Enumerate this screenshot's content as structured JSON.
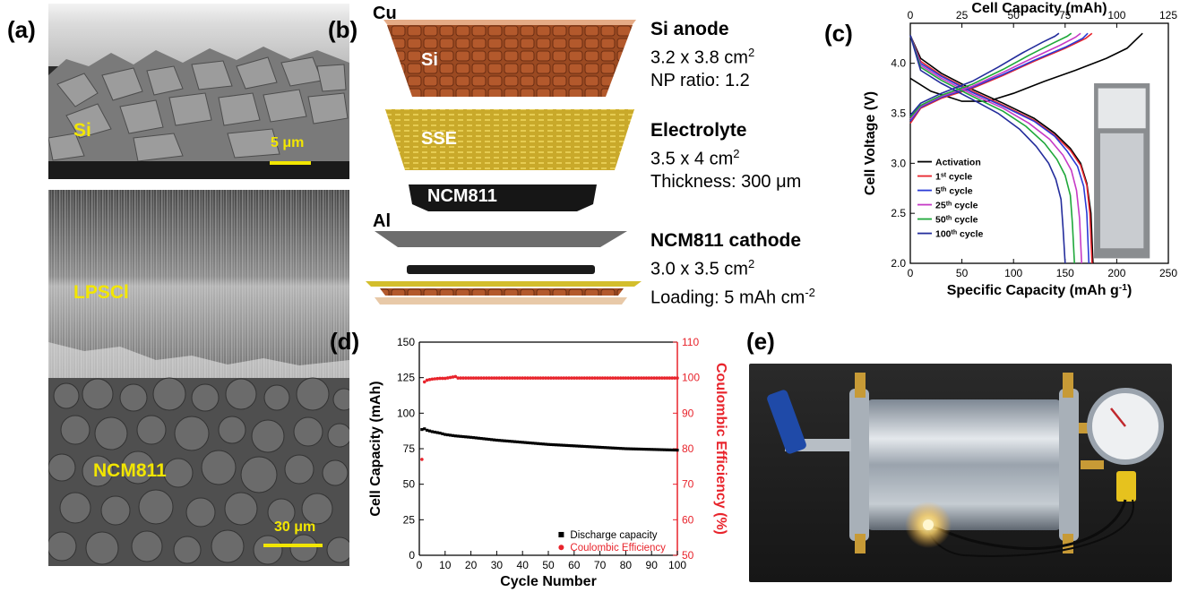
{
  "panels": {
    "a": {
      "label": "(a)",
      "top_image": {
        "label": "Si",
        "scale_bar": "5 μm"
      },
      "bottom_image": {
        "label_top": "LPSCl",
        "label_bottom": "NCM811",
        "scale_bar": "30 μm"
      }
    },
    "b": {
      "label": "(b)",
      "layer_labels": {
        "cu": "Cu",
        "si": "Si",
        "sse": "SSE",
        "ncm": "NCM811",
        "al": "Al"
      },
      "specs": [
        {
          "title": "Si anode",
          "line1": "3.2 x 3.8 cm",
          "line1_sup": "2",
          "line2": "NP ratio: 1.2"
        },
        {
          "title": "Electrolyte",
          "line1": "3.5 x 4 cm",
          "line1_sup": "2",
          "line2": "Thickness: 300 μm"
        },
        {
          "title": "NCM811 cathode",
          "line1": "3.0 x 3.5 cm",
          "line1_sup": "2",
          "line2": "Loading: 5 mAh cm",
          "line2_sup": "-2"
        }
      ]
    },
    "c": {
      "label": "(c)"
    },
    "d": {
      "label": "(d)"
    },
    "e": {
      "label": "(e)"
    }
  },
  "chart_data": [
    {
      "type": "line",
      "panel": "c",
      "xlabel": "Specific Capacity (mAh g-1)",
      "x2label": "Cell Capacity (mAh)",
      "ylabel": "Cell Voltage (V)",
      "xlim": [
        0,
        250
      ],
      "x2lim": [
        0,
        125
      ],
      "ylim": [
        2.0,
        4.4
      ],
      "xticks": [
        "0",
        "50",
        "100",
        "150",
        "200",
        "250"
      ],
      "x2ticks": [
        "0",
        "25",
        "50",
        "75",
        "100",
        "125"
      ],
      "yticks": [
        "2.0",
        "2.5",
        "3.0",
        "3.5",
        "4.0"
      ],
      "legend_position": "bottom-left",
      "series": [
        {
          "name": "Activation",
          "sup": "",
          "color": "#000000",
          "charge": [
            [
              0,
              3.85
            ],
            [
              20,
              3.72
            ],
            [
              50,
              3.62
            ],
            [
              75,
              3.62
            ],
            [
              100,
              3.7
            ],
            [
              130,
              3.82
            ],
            [
              160,
              3.93
            ],
            [
              190,
              4.05
            ],
            [
              210,
              4.15
            ],
            [
              225,
              4.3
            ]
          ],
          "discharge": [
            [
              0,
              4.28
            ],
            [
              10,
              4.05
            ],
            [
              30,
              3.9
            ],
            [
              60,
              3.74
            ],
            [
              90,
              3.6
            ],
            [
              120,
              3.45
            ],
            [
              140,
              3.3
            ],
            [
              155,
              3.15
            ],
            [
              165,
              3.0
            ],
            [
              171,
              2.8
            ],
            [
              175,
              2.5
            ],
            [
              177,
              2.0
            ]
          ]
        },
        {
          "name": "1",
          "sup": "st",
          "suffix": " cycle",
          "color": "#e8242c",
          "charge": [
            [
              0,
              3.4
            ],
            [
              10,
              3.55
            ],
            [
              30,
              3.65
            ],
            [
              60,
              3.75
            ],
            [
              90,
              3.88
            ],
            [
              120,
              4.02
            ],
            [
              150,
              4.15
            ],
            [
              170,
              4.25
            ],
            [
              176,
              4.3
            ]
          ],
          "discharge": [
            [
              0,
              4.28
            ],
            [
              10,
              4.02
            ],
            [
              30,
              3.88
            ],
            [
              60,
              3.72
            ],
            [
              90,
              3.58
            ],
            [
              120,
              3.43
            ],
            [
              140,
              3.28
            ],
            [
              155,
              3.13
            ],
            [
              165,
              2.98
            ],
            [
              171,
              2.78
            ],
            [
              174,
              2.5
            ],
            [
              176,
              2.0
            ]
          ]
        },
        {
          "name": "5",
          "sup": "th",
          "suffix": " cycle",
          "color": "#2b3bd6",
          "charge": [
            [
              0,
              3.42
            ],
            [
              10,
              3.56
            ],
            [
              30,
              3.66
            ],
            [
              60,
              3.76
            ],
            [
              90,
              3.89
            ],
            [
              120,
              4.03
            ],
            [
              150,
              4.16
            ],
            [
              167,
              4.25
            ],
            [
              172,
              4.3
            ]
          ],
          "discharge": [
            [
              0,
              4.28
            ],
            [
              10,
              4.0
            ],
            [
              30,
              3.87
            ],
            [
              60,
              3.71
            ],
            [
              90,
              3.57
            ],
            [
              120,
              3.42
            ],
            [
              140,
              3.27
            ],
            [
              152,
              3.12
            ],
            [
              162,
              2.97
            ],
            [
              168,
              2.77
            ],
            [
              171,
              2.5
            ],
            [
              173,
              2.0
            ]
          ]
        },
        {
          "name": "25",
          "sup": "th",
          "suffix": " cycle",
          "color": "#c63ac6",
          "charge": [
            [
              0,
              3.44
            ],
            [
              10,
              3.57
            ],
            [
              30,
              3.67
            ],
            [
              60,
              3.77
            ],
            [
              90,
              3.91
            ],
            [
              120,
              4.06
            ],
            [
              145,
              4.18
            ],
            [
              160,
              4.26
            ],
            [
              165,
              4.3
            ]
          ],
          "discharge": [
            [
              0,
              4.28
            ],
            [
              10,
              3.98
            ],
            [
              30,
              3.85
            ],
            [
              60,
              3.69
            ],
            [
              90,
              3.55
            ],
            [
              115,
              3.4
            ],
            [
              135,
              3.24
            ],
            [
              148,
              3.08
            ],
            [
              156,
              2.93
            ],
            [
              161,
              2.73
            ],
            [
              164,
              2.45
            ],
            [
              166,
              2.0
            ]
          ]
        },
        {
          "name": "50",
          "sup": "th",
          "suffix": " cycle",
          "color": "#1fa83a",
          "charge": [
            [
              0,
              3.46
            ],
            [
              10,
              3.58
            ],
            [
              30,
              3.68
            ],
            [
              60,
              3.79
            ],
            [
              90,
              3.94
            ],
            [
              115,
              4.08
            ],
            [
              138,
              4.2
            ],
            [
              152,
              4.27
            ],
            [
              156,
              4.3
            ]
          ],
          "discharge": [
            [
              0,
              4.28
            ],
            [
              10,
              3.96
            ],
            [
              30,
              3.83
            ],
            [
              60,
              3.67
            ],
            [
              90,
              3.52
            ],
            [
              112,
              3.37
            ],
            [
              130,
              3.2
            ],
            [
              142,
              3.04
            ],
            [
              150,
              2.88
            ],
            [
              155,
              2.68
            ],
            [
              157,
              2.4
            ],
            [
              159,
              2.0
            ]
          ]
        },
        {
          "name": "100",
          "sup": "th",
          "suffix": " cycle",
          "color": "#242d9c",
          "charge": [
            [
              0,
              3.48
            ],
            [
              10,
              3.6
            ],
            [
              30,
              3.7
            ],
            [
              60,
              3.82
            ],
            [
              85,
              3.96
            ],
            [
              108,
              4.1
            ],
            [
              128,
              4.21
            ],
            [
              140,
              4.27
            ],
            [
              144,
              4.3
            ]
          ],
          "discharge": [
            [
              0,
              4.28
            ],
            [
              10,
              3.93
            ],
            [
              30,
              3.8
            ],
            [
              60,
              3.64
            ],
            [
              85,
              3.5
            ],
            [
              106,
              3.34
            ],
            [
              122,
              3.17
            ],
            [
              134,
              3.0
            ],
            [
              141,
              2.84
            ],
            [
              146,
              2.64
            ],
            [
              148,
              2.35
            ],
            [
              150,
              2.0
            ]
          ]
        }
      ]
    },
    {
      "type": "scatter",
      "panel": "d",
      "xlabel": "Cycle Number",
      "ylabel": "Cell Capacity (mAh)",
      "y2label": "Coulombic Efficiency (%)",
      "xlim": [
        0,
        100
      ],
      "ylim": [
        0,
        150
      ],
      "y2lim": [
        50,
        110
      ],
      "xticks": [
        "0",
        "10",
        "20",
        "30",
        "40",
        "50",
        "60",
        "70",
        "80",
        "90",
        "100"
      ],
      "yticks": [
        "0",
        "25",
        "50",
        "75",
        "100",
        "125",
        "150"
      ],
      "y2ticks": [
        "50",
        "60",
        "70",
        "80",
        "90",
        "100",
        "110"
      ],
      "legend_position": "bottom-right",
      "series": [
        {
          "name": "Discharge capacity",
          "axis": "left",
          "color": "#000000",
          "points": [
            [
              1,
              88.5
            ],
            [
              2,
              89
            ],
            [
              3,
              88
            ],
            [
              5,
              87
            ],
            [
              8,
              86
            ],
            [
              10,
              85
            ],
            [
              14,
              84
            ],
            [
              20,
              83
            ],
            [
              30,
              81
            ],
            [
              40,
              79.5
            ],
            [
              50,
              78
            ],
            [
              60,
              77
            ],
            [
              70,
              76
            ],
            [
              80,
              75
            ],
            [
              90,
              74.5
            ],
            [
              100,
              74
            ]
          ]
        },
        {
          "name": "Coulombic Efficiency",
          "axis": "right",
          "color": "#e8242c",
          "points": [
            [
              1,
              77
            ],
            [
              2,
              98.8
            ],
            [
              3,
              99.3
            ],
            [
              5,
              99.6
            ],
            [
              8,
              99.8
            ],
            [
              10,
              99.8
            ],
            [
              14,
              100.3
            ],
            [
              15,
              99.9
            ],
            [
              20,
              99.9
            ],
            [
              30,
              99.9
            ],
            [
              40,
              99.9
            ],
            [
              50,
              99.9
            ],
            [
              60,
              99.9
            ],
            [
              70,
              99.9
            ],
            [
              80,
              99.9
            ],
            [
              90,
              99.9
            ],
            [
              100,
              99.9
            ]
          ]
        }
      ]
    }
  ]
}
